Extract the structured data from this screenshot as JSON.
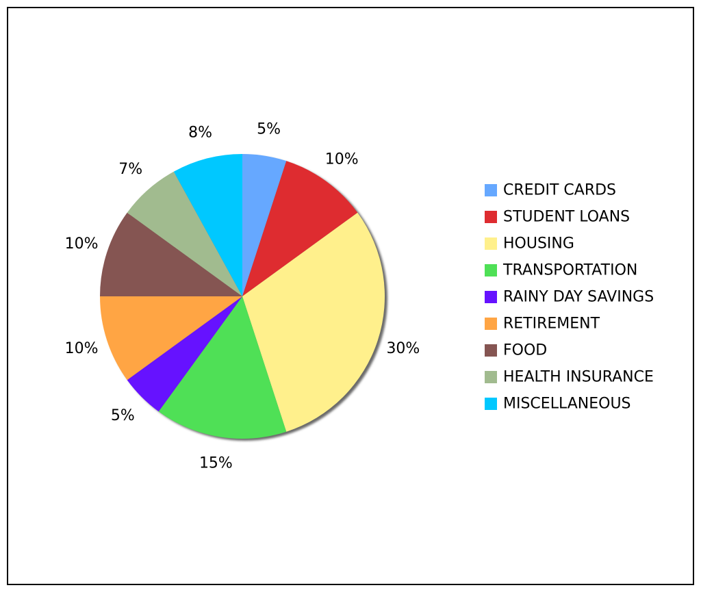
{
  "chart_data": {
    "type": "pie",
    "title": "",
    "legend_position": "right",
    "slices": [
      {
        "label": "CREDIT CARDS",
        "value": 5,
        "display": "5%",
        "color": "#66a8ff"
      },
      {
        "label": "STUDENT LOANS",
        "value": 10,
        "display": "10%",
        "color": "#de2c30"
      },
      {
        "label": "HOUSING",
        "value": 30,
        "display": "30%",
        "color": "#fff08c"
      },
      {
        "label": "TRANSPORTATION",
        "value": 15,
        "display": "15%",
        "color": "#4fe056"
      },
      {
        "label": "RAINY DAY SAVINGS",
        "value": 5,
        "display": "5%",
        "color": "#6612ff"
      },
      {
        "label": "RETIREMENT",
        "value": 10,
        "display": "10%",
        "color": "#ffa544"
      },
      {
        "label": "FOOD",
        "value": 10,
        "display": "10%",
        "color": "#855552"
      },
      {
        "label": "HEALTH INSURANCE",
        "value": 7,
        "display": "7%",
        "color": "#a1bb8f"
      },
      {
        "label": "MISCELLANEOUS",
        "value": 8,
        "display": "8%",
        "color": "#00c8ff"
      }
    ]
  }
}
